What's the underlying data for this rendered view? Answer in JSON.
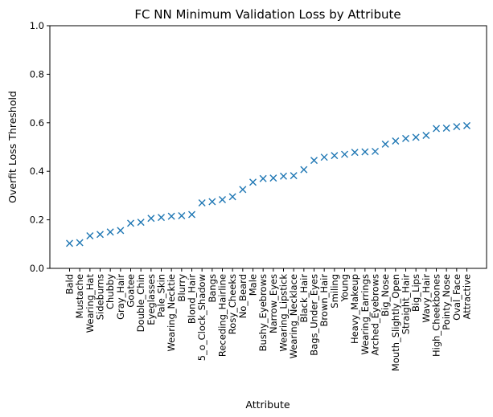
{
  "chart_data": {
    "type": "scatter",
    "title": "FC NN Minimum Validation Loss by Attribute",
    "xlabel": "Attribute",
    "ylabel": "Overfit Loss Threshold",
    "ylim": [
      0,
      1
    ],
    "yticks": [
      "0.0",
      "0.2",
      "0.4",
      "0.6",
      "0.8",
      "1.0"
    ],
    "marker": "x",
    "marker_color": "#1f77b4",
    "grid": false,
    "categories": [
      "Bald",
      "Mustache",
      "Wearing_Hat",
      "Sideburns",
      "Chubby",
      "Gray_Hair",
      "Goatee",
      "Double_Chin",
      "Eyeglasses",
      "Pale_Skin",
      "Wearing_Necktie",
      "Blurry",
      "Blond_Hair",
      "5_o_Clock_Shadow",
      "Bangs",
      "Receding_Hairline",
      "Rosy_Cheeks",
      "No_Beard",
      "Male",
      "Bushy_Eyebrows",
      "Narrow_Eyes",
      "Wearing_Lipstick",
      "Wearing_Necklace",
      "Black_Hair",
      "Bags_Under_Eyes",
      "Brown_Hair",
      "Smiling",
      "Young",
      "Heavy_Makeup",
      "Wearing_Earrings",
      "Arched_Eyebrows",
      "Big_Nose",
      "Mouth_Slightly_Open",
      "Straight_Hair",
      "Big_Lips",
      "Wavy_Hair",
      "High_Cheekbones",
      "Pointy_Nose",
      "Oval_Face",
      "Attractive"
    ],
    "values": [
      0.103,
      0.106,
      0.134,
      0.14,
      0.15,
      0.156,
      0.186,
      0.19,
      0.206,
      0.21,
      0.215,
      0.217,
      0.222,
      0.27,
      0.275,
      0.283,
      0.295,
      0.325,
      0.355,
      0.37,
      0.372,
      0.38,
      0.382,
      0.407,
      0.445,
      0.458,
      0.465,
      0.47,
      0.478,
      0.48,
      0.482,
      0.512,
      0.525,
      0.535,
      0.54,
      0.548,
      0.576,
      0.578,
      0.584,
      0.588
    ]
  }
}
